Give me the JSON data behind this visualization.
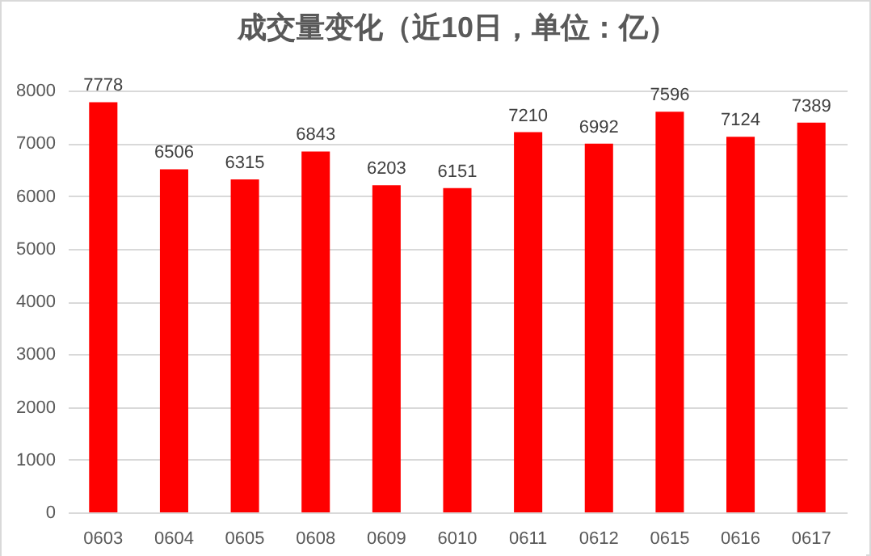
{
  "chart_data": {
    "type": "bar",
    "title": "成交量变化（近10日，单位：亿）",
    "categories": [
      "0603",
      "0604",
      "0605",
      "0608",
      "0609",
      "6010",
      "0611",
      "0612",
      "0615",
      "0616",
      "0617"
    ],
    "values": [
      7778,
      6506,
      6315,
      6843,
      6203,
      6151,
      7210,
      6992,
      7596,
      7124,
      7389
    ],
    "color": "#ff0000",
    "ylim": [
      0,
      8000
    ],
    "yticks": [
      0,
      1000,
      2000,
      3000,
      4000,
      5000,
      6000,
      7000,
      8000
    ],
    "grid": "y",
    "data_labels": true
  }
}
